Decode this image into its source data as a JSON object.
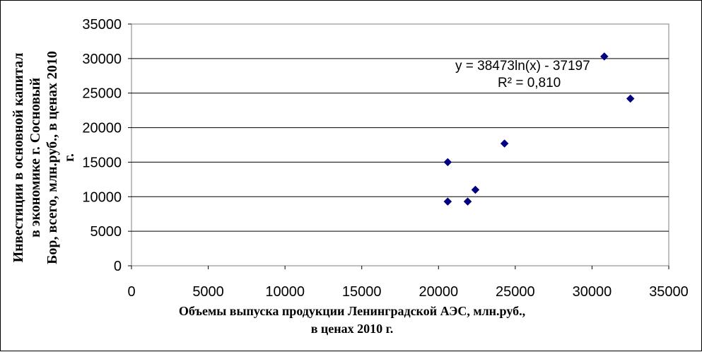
{
  "chart_data": {
    "type": "scatter",
    "title": "",
    "xlabel_lines": [
      "Объемы выпуска продукции Ленинградской АЭС, млн.руб.,",
      "в ценах 2010 г."
    ],
    "ylabel_lines": [
      "Инвестиции  в основной капитал",
      "в экономике г. Сосновый",
      "Бор, всего, млн.руб., в ценах 2010",
      "г."
    ],
    "xlim": [
      0,
      35000
    ],
    "ylim": [
      0,
      35000
    ],
    "x_ticks": [
      "0",
      "5000",
      "10000",
      "15000",
      "20000",
      "25000",
      "30000",
      "35000"
    ],
    "y_ticks": [
      "0",
      "5000",
      "10000",
      "15000",
      "20000",
      "25000",
      "30000",
      "35000"
    ],
    "grid": "horizontal",
    "legend": "none",
    "marker_color": "#000080",
    "trend_color": "#000000",
    "series": [
      {
        "points": [
          {
            "x": 20600,
            "y": 9300
          },
          {
            "x": 20600,
            "y": 15000
          },
          {
            "x": 21900,
            "y": 9300
          },
          {
            "x": 22400,
            "y": 11000
          },
          {
            "x": 24300,
            "y": 17700
          },
          {
            "x": 30800,
            "y": 30300
          },
          {
            "x": 32500,
            "y": 24200
          }
        ]
      }
    ],
    "trendline": {
      "type": "logarithmic",
      "a": 38473,
      "b": -37197,
      "x_range": [
        20600,
        32500
      ],
      "equation_label": "y = 38473ln(x) - 37197",
      "r2_label": "R² = 0,810"
    }
  }
}
